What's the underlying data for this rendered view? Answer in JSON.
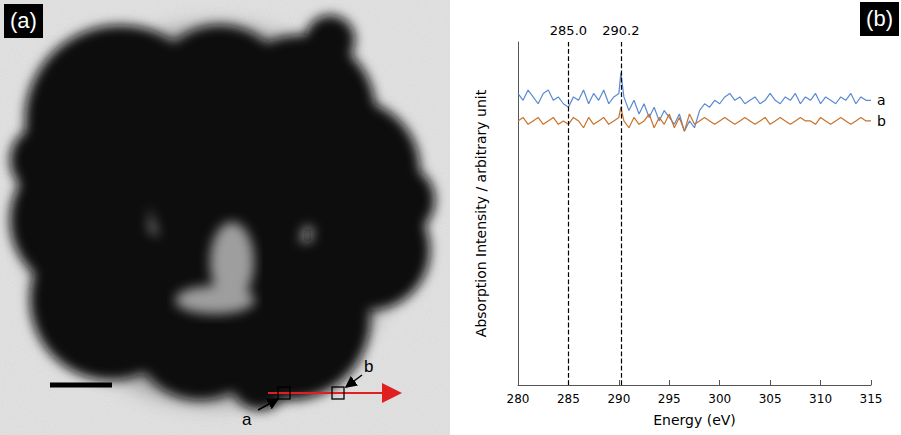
{
  "chart_data": {
    "type": "line",
    "x_label": "Energy (eV)",
    "y_label": "Absorption Intensity / arbitrary unit",
    "x": [
      280,
      280.5,
      281,
      281.5,
      282,
      282.5,
      283,
      283.5,
      284,
      284.5,
      285,
      285.5,
      286,
      286.5,
      287,
      287.5,
      288,
      288.5,
      289,
      289.5,
      290,
      290.2,
      290.5,
      291,
      291.5,
      292,
      292.5,
      293,
      293.5,
      294,
      294.5,
      295,
      295.5,
      296,
      296.5,
      297,
      297.5,
      298,
      298.5,
      299,
      299.5,
      300,
      300.5,
      301,
      301.5,
      302,
      302.5,
      303,
      303.5,
      304,
      304.5,
      305,
      305.5,
      306,
      306.5,
      307,
      307.5,
      308,
      308.5,
      309,
      309.5,
      310,
      310.5,
      311,
      311.5,
      312,
      312.5,
      313,
      313.5,
      314,
      314.5,
      315
    ],
    "series": [
      {
        "name": "a",
        "color": "#5a8ad4",
        "values": [
          85,
          83,
          86,
          84,
          82,
          85,
          86,
          83,
          84,
          82,
          81,
          84,
          83,
          86,
          82,
          85,
          83,
          86,
          82,
          84,
          85,
          91,
          84,
          80,
          83,
          79,
          82,
          78,
          81,
          77,
          80,
          78,
          76,
          79,
          74,
          77,
          75,
          80,
          82,
          81,
          83,
          82,
          84,
          85,
          83,
          84,
          82,
          83,
          84,
          82,
          83,
          85,
          83,
          82,
          84,
          83,
          85,
          82,
          84,
          83,
          85,
          82,
          84,
          83,
          82,
          84,
          83,
          85,
          82,
          84,
          83,
          83
        ]
      },
      {
        "name": "b",
        "color": "#c9732c",
        "values": [
          77,
          78,
          76,
          77,
          78,
          76,
          77,
          78,
          76,
          77,
          76,
          78,
          77,
          75,
          78,
          76,
          77,
          78,
          76,
          77,
          78,
          81,
          77,
          75,
          78,
          76,
          77,
          79,
          75,
          78,
          76,
          79,
          75,
          78,
          74,
          79,
          76,
          77,
          78,
          77,
          76,
          77,
          78,
          77,
          76,
          77,
          78,
          77,
          76,
          77,
          78,
          76,
          77,
          78,
          77,
          76,
          77,
          78,
          77,
          77,
          76,
          78,
          77,
          76,
          77,
          78,
          77,
          76,
          77,
          78,
          77,
          77
        ]
      }
    ],
    "vlines": [
      {
        "value": 285.0,
        "label": "285.0"
      },
      {
        "value": 290.2,
        "label": "290.2"
      }
    ],
    "xlim": [
      280,
      315
    ],
    "xticks": [
      280,
      285,
      290,
      295,
      300,
      305,
      310,
      315
    ],
    "ylim": [
      0,
      100
    ],
    "tick_labels": "x",
    "grid": false
  },
  "panel_labels": [
    "(a)",
    "(b)"
  ],
  "image_markers": [
    "a",
    "b"
  ]
}
